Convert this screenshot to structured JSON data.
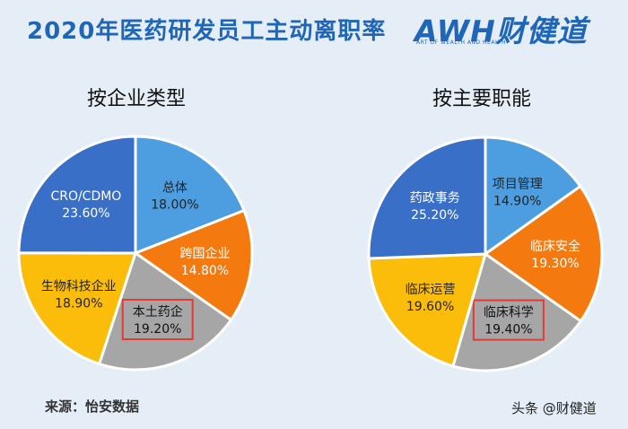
{
  "header": {
    "title": "2020年医药研发员工主动离职率",
    "logo_text": "AWH财健道",
    "logo_subtitle": "ART OF WEALTH AND HEALTH"
  },
  "footer": {
    "source": "来源：怡安数据",
    "watermark": "头条 @财健道"
  },
  "chart_data": [
    {
      "type": "pie",
      "title": "按企业类型",
      "slices": [
        {
          "label": "总体",
          "value": 18.0,
          "value_text": "18.00%",
          "color": "#4c9ee0",
          "highlight": false
        },
        {
          "label": "跨国企业",
          "value": 14.8,
          "value_text": "14.80%",
          "color": "#f47a10",
          "highlight": false
        },
        {
          "label": "本土药企",
          "value": 19.2,
          "value_text": "19.20%",
          "color": "#a6a6a6",
          "highlight": true
        },
        {
          "label": "生物科技企业",
          "value": 18.9,
          "value_text": "18.90%",
          "color": "#fbbd0a",
          "highlight": false
        },
        {
          "label": "CRO/CDMO",
          "value": 23.6,
          "value_text": "23.60%",
          "color": "#3a6fc8",
          "highlight": false
        }
      ]
    },
    {
      "type": "pie",
      "title": "按主要职能",
      "slices": [
        {
          "label": "项目管理",
          "value": 14.9,
          "value_text": "14.90%",
          "color": "#4c9ee0",
          "highlight": false
        },
        {
          "label": "临床安全",
          "value": 19.3,
          "value_text": "19.30%",
          "color": "#f47a10",
          "highlight": false
        },
        {
          "label": "临床科学",
          "value": 19.4,
          "value_text": "19.40%",
          "color": "#a6a6a6",
          "highlight": true
        },
        {
          "label": "临床运营",
          "value": 19.6,
          "value_text": "19.60%",
          "color": "#fbbd0a",
          "highlight": false
        },
        {
          "label": "药政事务",
          "value": 25.2,
          "value_text": "25.20%",
          "color": "#3a6fc8",
          "highlight": false
        }
      ]
    }
  ]
}
